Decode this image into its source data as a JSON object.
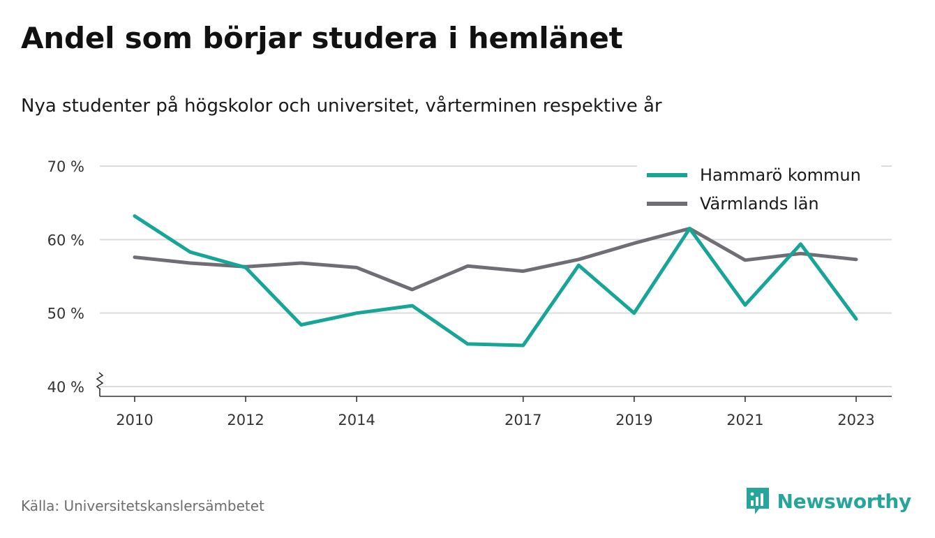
{
  "title": "Andel som börjar studera i hemlänet",
  "subtitle": "Nya studenter på högskolor och universitet, vårterminen respektive år",
  "source": "Källa: Universitetskanslersämbetet",
  "brand": {
    "name": "Newsworthy",
    "icon": "newsworthy-logo-icon",
    "color": "#26a69a"
  },
  "chart_data": {
    "type": "line",
    "x": [
      2010,
      2011,
      2012,
      2013,
      2014,
      2015,
      2016,
      2017,
      2018,
      2019,
      2020,
      2021,
      2022,
      2023
    ],
    "x_tick_labels": [
      "2010",
      "2012",
      "2014",
      "2017",
      "2019",
      "2021",
      "2023"
    ],
    "y_ticks": [
      40,
      50,
      60,
      70
    ],
    "y_tick_labels": [
      "40 %",
      "50 %",
      "60 %",
      "70 %"
    ],
    "ylim": [
      40,
      70
    ],
    "grid": true,
    "axis_break": true,
    "legend_position": "top-right",
    "series": [
      {
        "name": "Hammarö kommun",
        "color": "#16a597",
        "values": [
          63.2,
          58.3,
          56.2,
          48.4,
          50.0,
          51.0,
          45.8,
          45.6,
          56.5,
          50.0,
          61.5,
          51.1,
          59.4,
          49.2
        ]
      },
      {
        "name": "Värmlands län",
        "color": "#6f6e75",
        "values": [
          57.6,
          56.8,
          56.3,
          56.8,
          56.2,
          53.2,
          56.4,
          55.7,
          57.3,
          59.5,
          61.5,
          57.2,
          58.1,
          57.3
        ]
      }
    ]
  }
}
